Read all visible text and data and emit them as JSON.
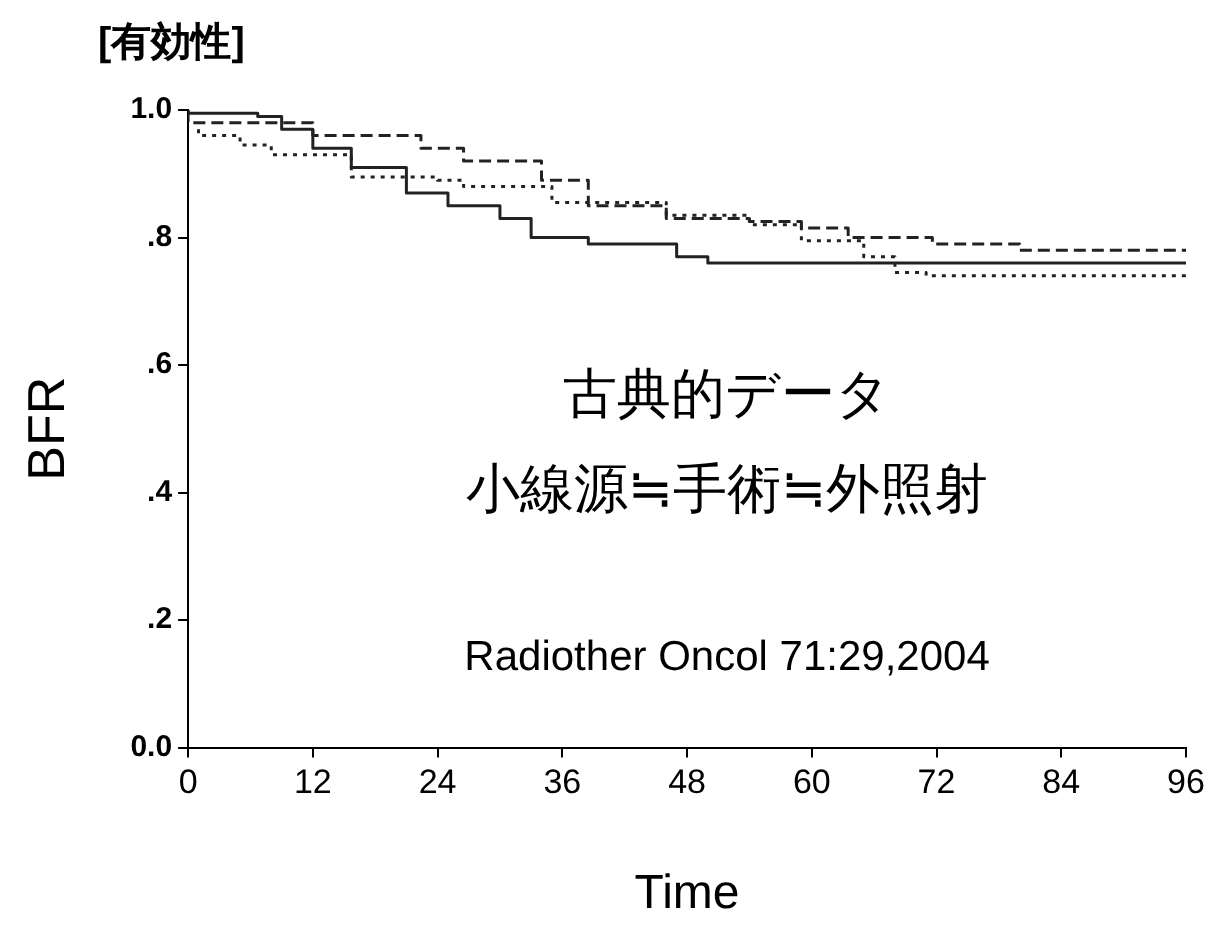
{
  "chart_data": {
    "type": "step",
    "title": "[有効性]",
    "xlabel": "Time",
    "ylabel": "BFR",
    "annotations": [
      "古典的データ",
      "小線源≒手術≒外照射",
      "Radiother Oncol 71:29,2004"
    ],
    "series": [
      {
        "color": "#222222",
        "line_style": "solid",
        "x": [
          0,
          6.7,
          9,
          12,
          15.7,
          21,
          25,
          30,
          33,
          38.5,
          41,
          47,
          50,
          58,
          96
        ],
        "values": [
          1.0,
          0.995,
          0.99,
          0.97,
          0.94,
          0.91,
          0.87,
          0.85,
          0.83,
          0.8,
          0.79,
          0.79,
          0.77,
          0.76,
          0.76
        ]
      },
      {
        "color": "#222222",
        "line_style": "dashed",
        "x": [
          0,
          12,
          22.4,
          26.5,
          34,
          38.5,
          46,
          54,
          59,
          63.5,
          71.6,
          80,
          92,
          96
        ],
        "values": [
          1.0,
          0.98,
          0.96,
          0.94,
          0.92,
          0.89,
          0.85,
          0.83,
          0.825,
          0.815,
          0.8,
          0.79,
          0.78,
          0.78
        ]
      },
      {
        "color": "#222222",
        "line_style": "dotted",
        "x": [
          1,
          5,
          8,
          15.7,
          24,
          26.5,
          35,
          46,
          54,
          59,
          65,
          68,
          71,
          80,
          96
        ],
        "values": [
          0.97,
          0.96,
          0.945,
          0.93,
          0.895,
          0.89,
          0.88,
          0.855,
          0.835,
          0.82,
          0.795,
          0.77,
          0.745,
          0.74,
          0.74
        ]
      }
    ],
    "xlim": [
      0,
      96
    ],
    "xticks": [
      0,
      12,
      24,
      36,
      48,
      60,
      72,
      84,
      96
    ],
    "ylim": [
      0,
      1
    ],
    "yticks": [
      {
        "value": 0,
        "label": "0.0"
      },
      {
        "value": 0.2,
        "label": ".2"
      },
      {
        "value": 0.4,
        "label": ".4"
      },
      {
        "value": 0.6,
        "label": ".6"
      },
      {
        "value": 0.8,
        "label": ".8"
      },
      {
        "value": 1,
        "label": "1.0"
      }
    ],
    "grid": false,
    "legend": false,
    "marker": "none"
  }
}
